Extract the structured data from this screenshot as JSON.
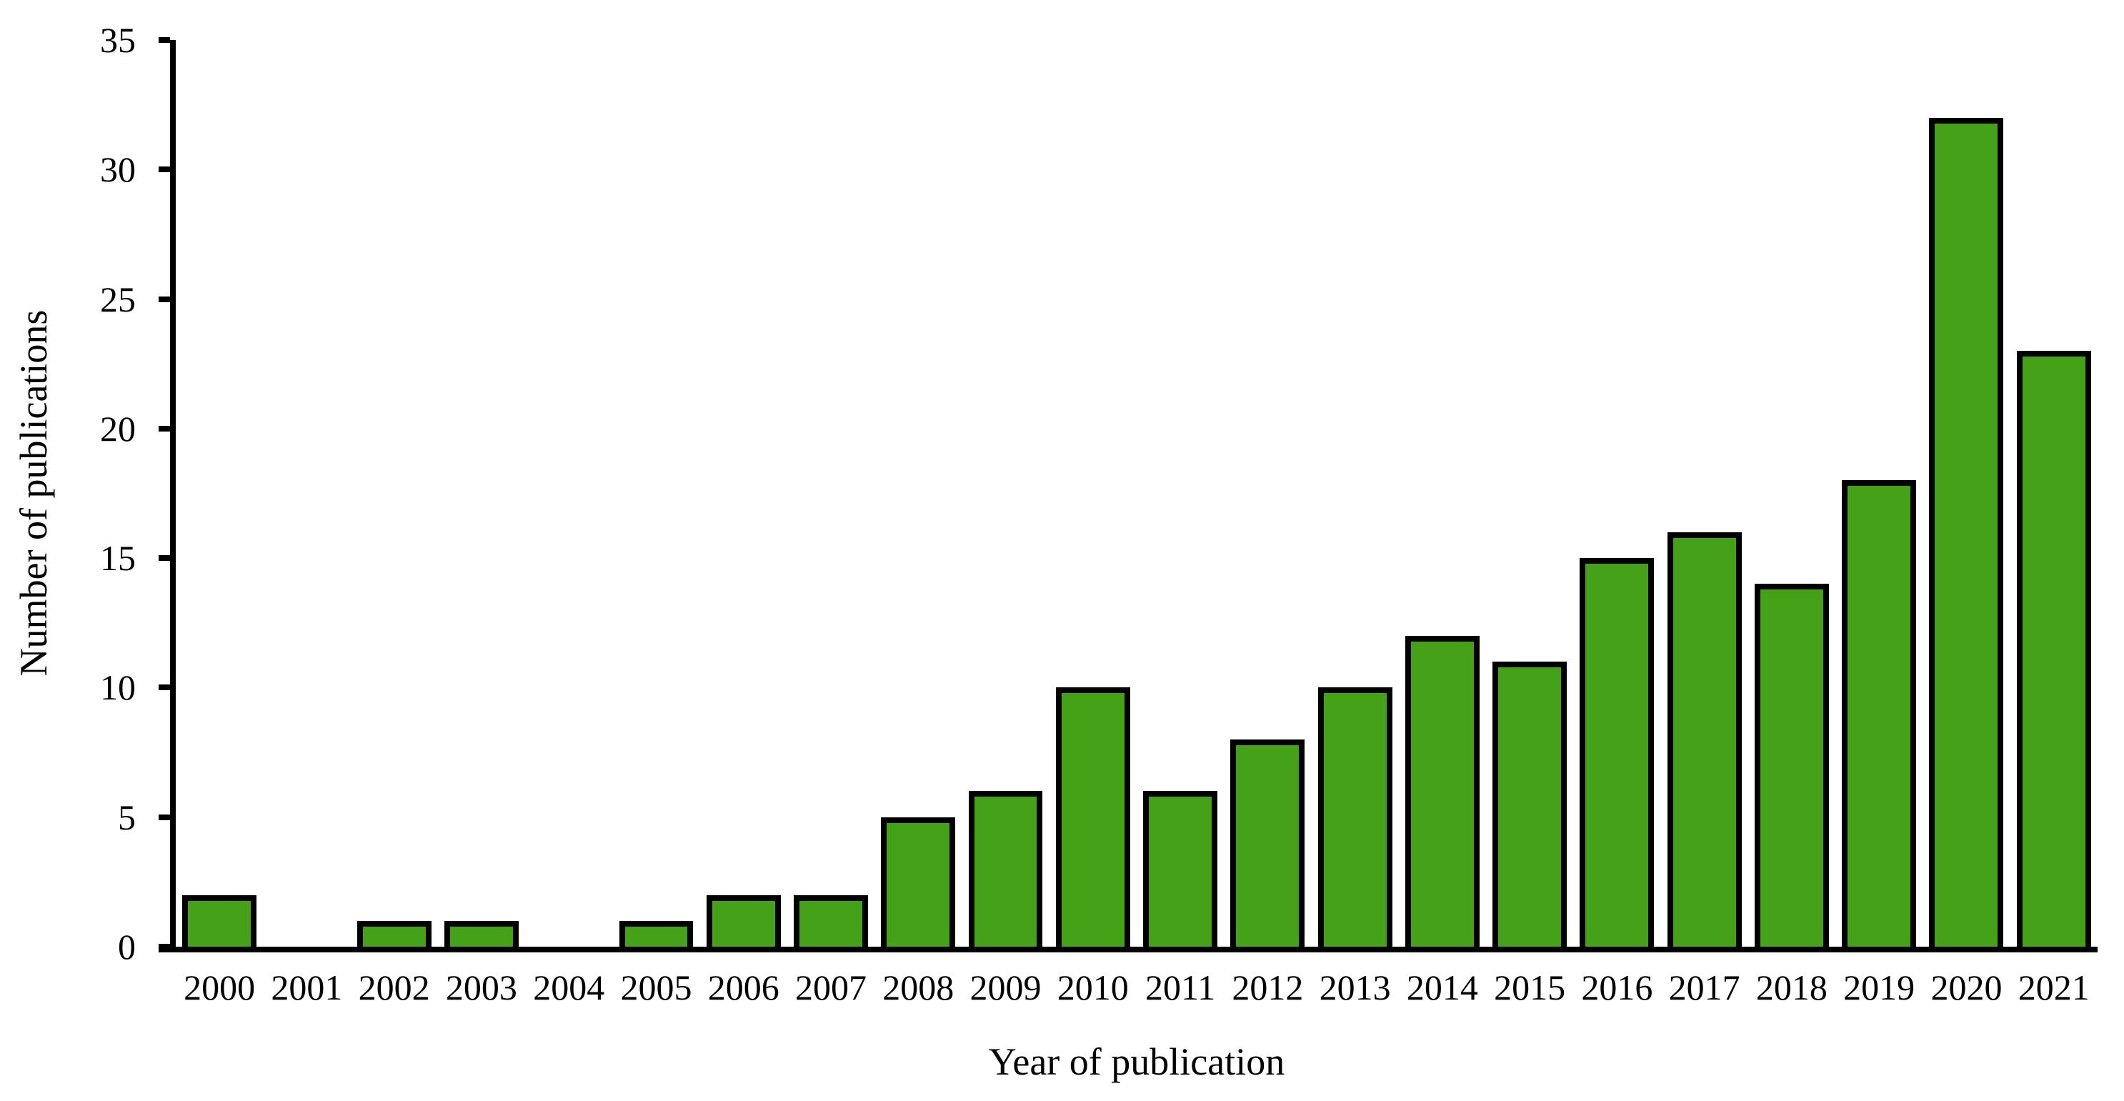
{
  "figure": {
    "background": "#FFFFFF"
  },
  "chart_data": {
    "type": "bar",
    "title": "",
    "categories": [
      "2000",
      "2001",
      "2002",
      "2003",
      "2004",
      "2005",
      "2006",
      "2007",
      "2008",
      "2009",
      "2010",
      "2011",
      "2012",
      "2013",
      "2014",
      "2015",
      "2016",
      "2017",
      "2018",
      "2019",
      "2020",
      "2021"
    ],
    "values": [
      2,
      0,
      1,
      1,
      0,
      1,
      2,
      2,
      5,
      6,
      10,
      6,
      8,
      10,
      12,
      11,
      15,
      16,
      14,
      18,
      32,
      23
    ],
    "xlabel": "Year of publication",
    "ylabel": "Number of publications",
    "ylim": [
      0,
      35
    ],
    "yticks": [
      0,
      5,
      10,
      15,
      20,
      25,
      30,
      35
    ],
    "grid": false,
    "legend": false,
    "bar_fill_color": "#44A118",
    "bar_border_color": "#000000",
    "axis_color": "#000000"
  }
}
